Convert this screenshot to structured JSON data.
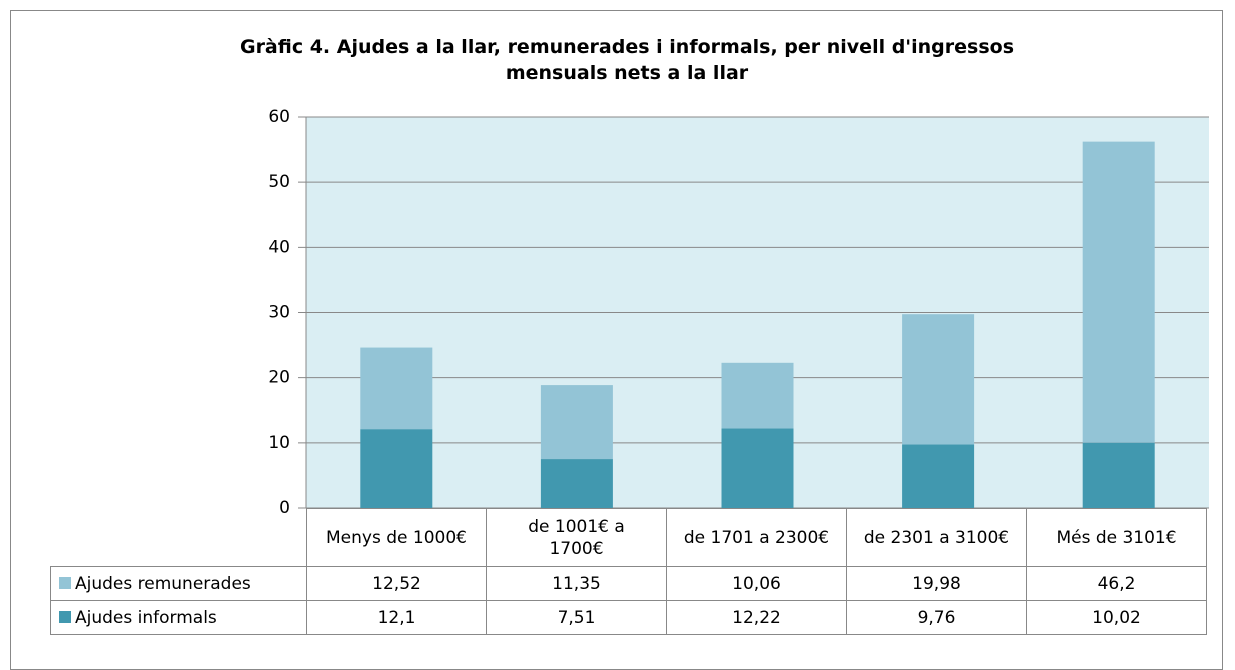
{
  "chart_data": {
    "type": "stacked_bar",
    "title": "Gràfic 4. Ajudes a la llar, remunerades i informals, per nivell d'ingressos mensuals nets a la llar",
    "categories": [
      "Menys de 1000€",
      "de 1001€ a 1700€",
      "de 1701 a 2300€",
      "de 2301 a 3100€",
      "Més de 3101€"
    ],
    "series": [
      {
        "name": "Ajudes remunerades",
        "color": "#93c4d6",
        "values": [
          12.52,
          11.35,
          10.06,
          19.98,
          46.2
        ],
        "value_labels": [
          "12,52",
          "11,35",
          "10,06",
          "19,98",
          "46,2"
        ]
      },
      {
        "name": "Ajudes informals",
        "color": "#4198af",
        "values": [
          12.1,
          7.51,
          12.22,
          9.76,
          10.02
        ],
        "value_labels": [
          "12,1",
          "7,51",
          "12,22",
          "9,76",
          "10,02"
        ]
      }
    ],
    "ylim": [
      0,
      60
    ],
    "yticks": [
      0,
      10,
      20,
      30,
      40,
      50,
      60
    ],
    "grid": true,
    "plot_background": "#daeef3"
  }
}
